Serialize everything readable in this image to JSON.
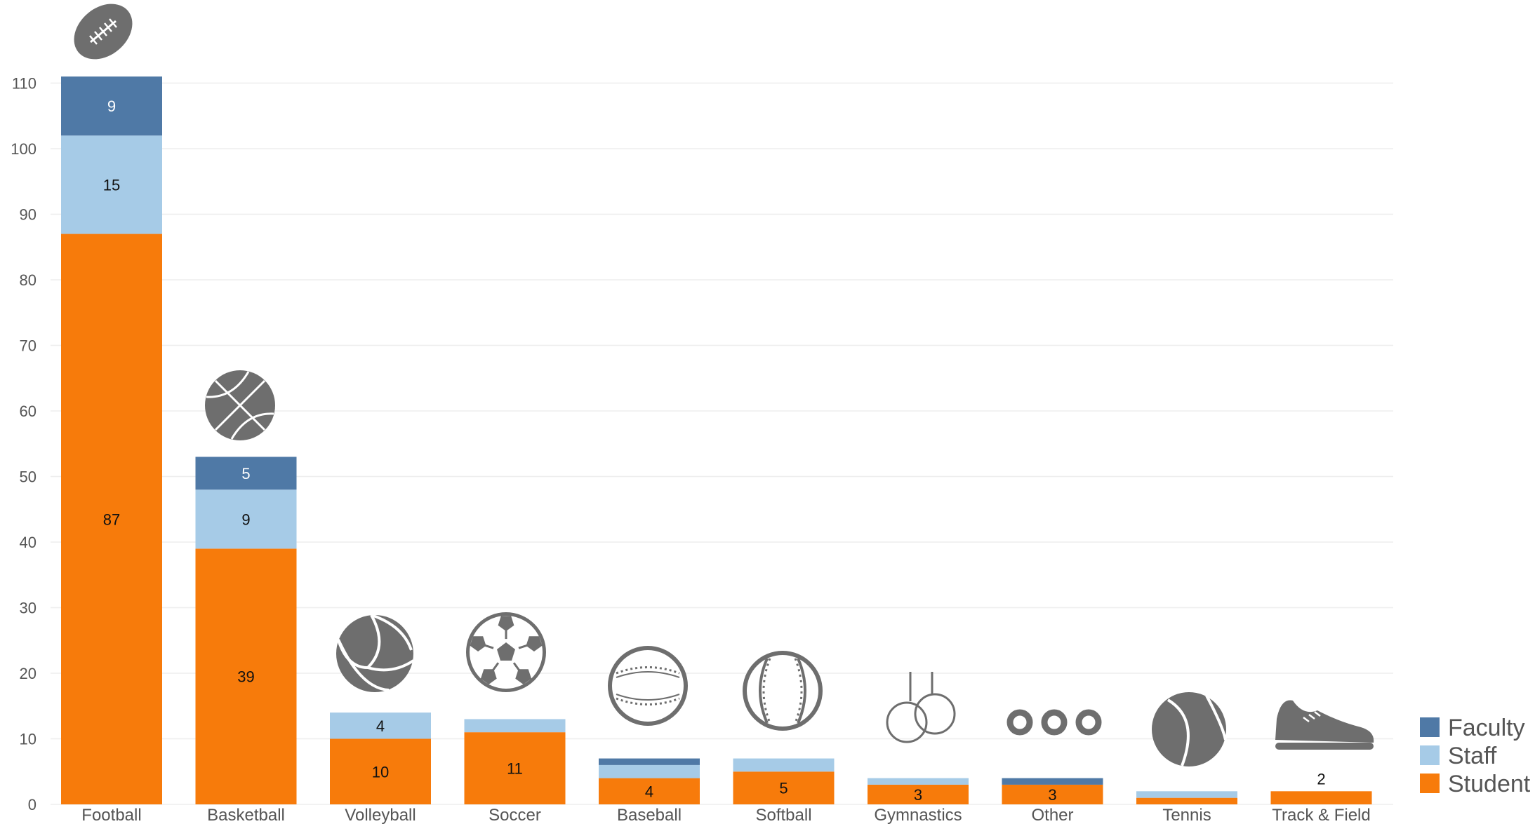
{
  "chart_data": {
    "type": "bar",
    "stacked": true,
    "categories": [
      "Football",
      "Basketball",
      "Volleyball",
      "Soccer",
      "Baseball",
      "Softball",
      "Gymnastics",
      "Other",
      "Tennis",
      "Track & Field"
    ],
    "series": [
      {
        "name": "Student",
        "values": [
          87,
          39,
          10,
          11,
          4,
          5,
          3,
          3,
          1,
          2
        ]
      },
      {
        "name": "Staff",
        "values": [
          15,
          9,
          4,
          2,
          2,
          2,
          1,
          0,
          1,
          0
        ]
      },
      {
        "name": "Faculty",
        "values": [
          9,
          5,
          0,
          0,
          1,
          0,
          0,
          1,
          0,
          0
        ]
      }
    ],
    "data_labels": {
      "Student": [
        "87",
        "39",
        "10",
        "11",
        "4",
        "5",
        "3",
        "3",
        "",
        "2"
      ],
      "Staff": [
        "15",
        "9",
        "4",
        "",
        "",
        "",
        "",
        "",
        "",
        ""
      ],
      "Faculty": [
        "9",
        "5",
        "",
        "",
        "",
        "",
        "",
        "",
        "",
        ""
      ]
    },
    "yticks": [
      0,
      10,
      20,
      30,
      40,
      50,
      60,
      70,
      80,
      90,
      100,
      110
    ],
    "ylim": [
      0,
      112
    ],
    "grid": true,
    "legend": {
      "placement": "bottom-right",
      "order": [
        "Faculty",
        "Staff",
        "Student"
      ]
    },
    "colors": {
      "Student": "#F77B0B",
      "Staff": "#A6CBE7",
      "Faculty": "#4F79A6",
      "icon": "#6E6E6E"
    },
    "icons": [
      "football-icon",
      "basketball-icon",
      "volleyball-icon",
      "soccer-ball-icon",
      "baseball-icon",
      "softball-icon",
      "gymnastics-rings-icon",
      "other-circles-icon",
      "tennis-ball-icon",
      "running-shoe-icon"
    ]
  }
}
